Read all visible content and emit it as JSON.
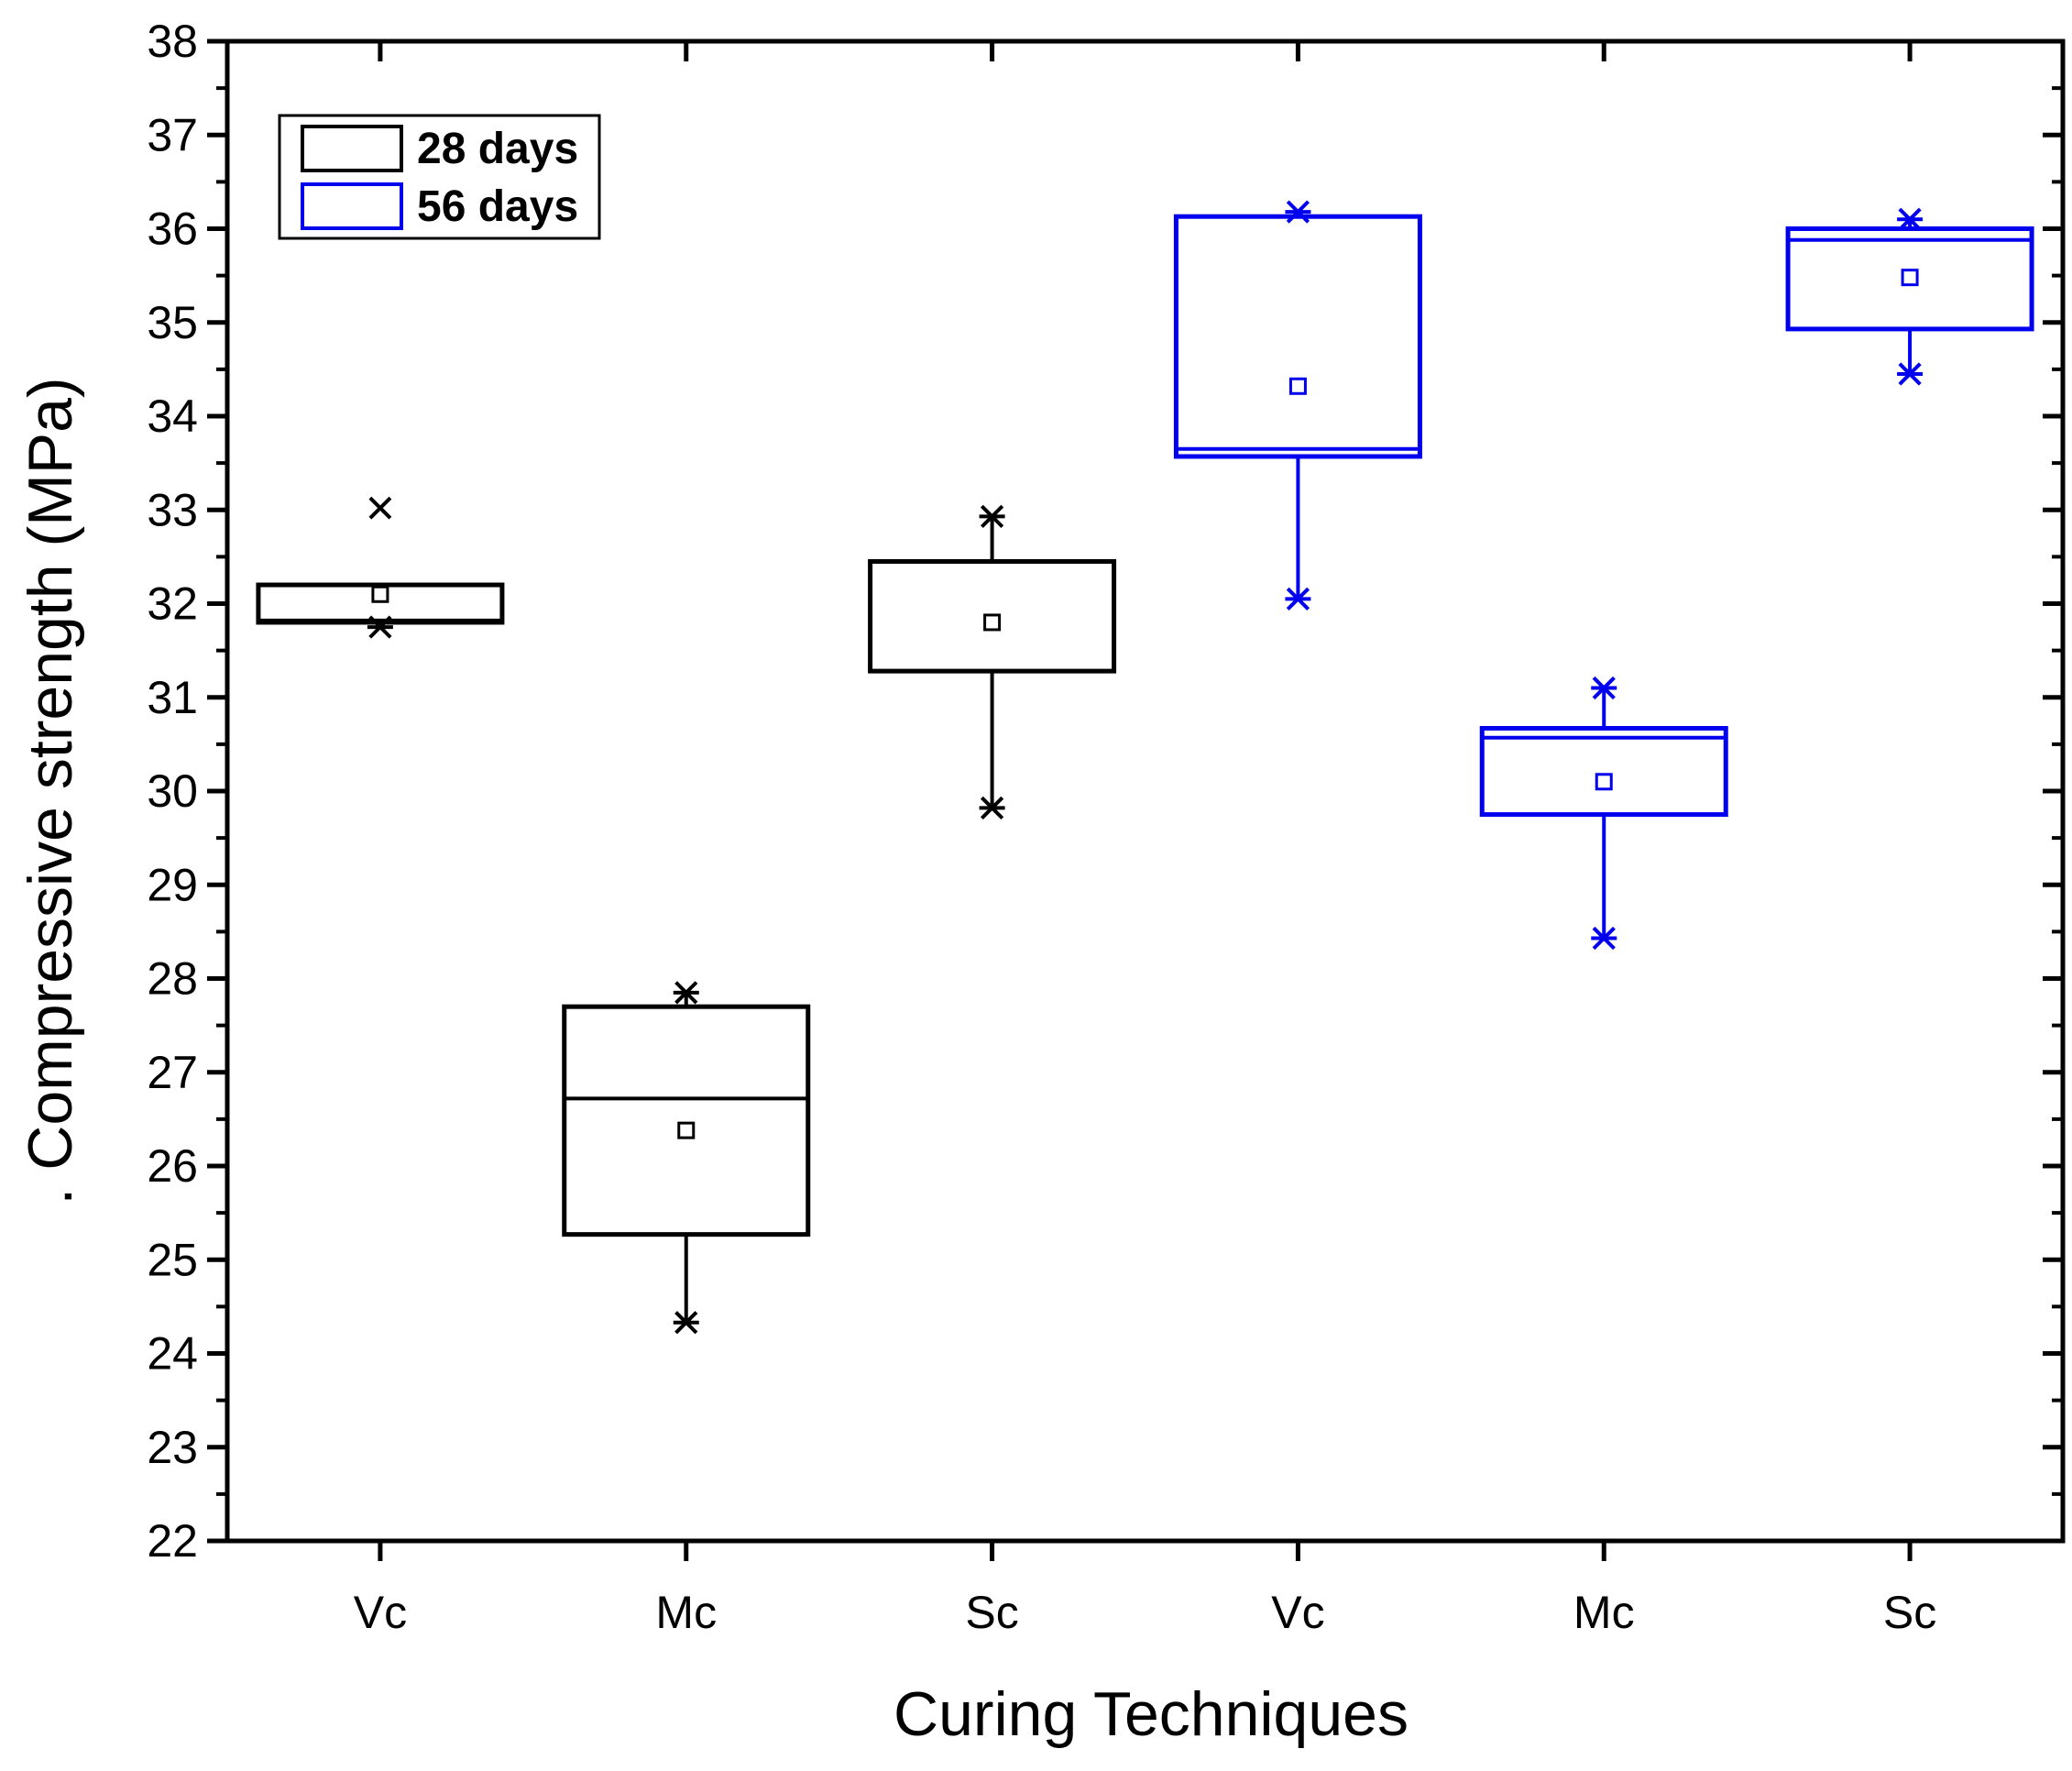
{
  "chart_data": {
    "type": "box",
    "xlabel": "Curing Techniques",
    "ylabel": ". Compressive strength (MPa)",
    "ylim": [
      22,
      38
    ],
    "yticks": [
      22,
      23,
      24,
      25,
      26,
      27,
      28,
      29,
      30,
      31,
      32,
      33,
      34,
      35,
      36,
      37,
      38
    ],
    "categories": [
      "Vc",
      "Mc",
      "Sc",
      "Vc",
      "Mc",
      "Sc"
    ],
    "legend": {
      "position": "top-left",
      "entries": [
        {
          "label": "28 days",
          "color": "#000000"
        },
        {
          "label": "56 days",
          "color": "#0000ee"
        }
      ]
    },
    "series": [
      {
        "name": "28 days",
        "color": "#000000",
        "boxes": [
          {
            "category": "Vc",
            "q1": 31.8,
            "median": 31.82,
            "q3": 32.2,
            "mean": 32.1,
            "whisker_low": 31.8,
            "whisker_high": 32.2,
            "min": 31.75,
            "max": 33.02
          },
          {
            "category": "Mc",
            "q1": 25.27,
            "median": 26.72,
            "q3": 27.7,
            "mean": 26.38,
            "whisker_low": 24.33,
            "whisker_high": 27.85,
            "min": 24.33,
            "max": 27.85
          },
          {
            "category": "Sc",
            "q1": 31.28,
            "median": 31.28,
            "q3": 32.45,
            "mean": 31.8,
            "whisker_low": 29.82,
            "whisker_high": 32.93,
            "min": 29.82,
            "max": 32.93
          }
        ]
      },
      {
        "name": "56 days",
        "color": "#0000ee",
        "boxes": [
          {
            "category": "Vc",
            "q1": 33.57,
            "median": 33.65,
            "q3": 36.13,
            "mean": 34.32,
            "whisker_low": 32.05,
            "whisker_high": 36.18,
            "min": 32.05,
            "max": 36.18
          },
          {
            "category": "Mc",
            "q1": 29.75,
            "median": 30.57,
            "q3": 30.67,
            "mean": 30.1,
            "whisker_low": 28.43,
            "whisker_high": 31.1,
            "min": 28.43,
            "max": 31.1
          },
          {
            "category": "Sc",
            "q1": 34.93,
            "median": 35.88,
            "q3": 36.0,
            "mean": 35.48,
            "whisker_low": 34.45,
            "whisker_high": 36.1,
            "min": 34.45,
            "max": 36.1
          }
        ]
      }
    ]
  }
}
